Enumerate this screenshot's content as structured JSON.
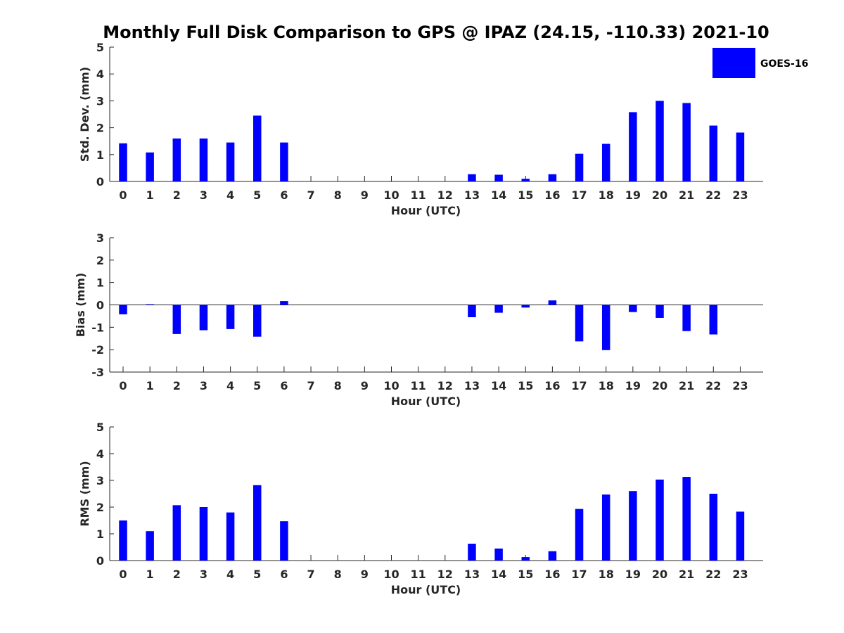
{
  "title": "Monthly Full Disk Comparison to GPS @ IPAZ (24.15, -110.33) 2021-10",
  "legend": {
    "label": "GOES-16",
    "color": "#0000ff",
    "placement": "top-right"
  },
  "chart_data": [
    {
      "type": "bar",
      "name": "std",
      "xlabel": "Hour (UTC)",
      "ylabel": "Std. Dev. (mm)",
      "ylim": [
        0,
        5
      ],
      "yticks": [
        "0",
        "1",
        "2",
        "3",
        "4",
        "5"
      ],
      "categories": [
        "0",
        "1",
        "2",
        "3",
        "4",
        "5",
        "6",
        "7",
        "8",
        "9",
        "10",
        "11",
        "12",
        "13",
        "14",
        "15",
        "16",
        "17",
        "18",
        "19",
        "20",
        "21",
        "22",
        "23"
      ],
      "series": [
        {
          "name": "GOES-16",
          "values": [
            1.42,
            1.08,
            1.6,
            1.6,
            1.45,
            2.45,
            1.45,
            0,
            0,
            0,
            0,
            0,
            0,
            0.27,
            0.25,
            0.1,
            0.27,
            1.03,
            1.4,
            2.58,
            3.0,
            2.92,
            2.08,
            1.82
          ]
        }
      ]
    },
    {
      "type": "bar",
      "name": "bias",
      "xlabel": "Hour (UTC)",
      "ylabel": "Bias (mm)",
      "ylim": [
        -3,
        3
      ],
      "yticks": [
        "-3",
        "-2",
        "-1",
        "0",
        "1",
        "2",
        "3"
      ],
      "categories": [
        "0",
        "1",
        "2",
        "3",
        "4",
        "5",
        "6",
        "7",
        "8",
        "9",
        "10",
        "11",
        "12",
        "13",
        "14",
        "15",
        "16",
        "17",
        "18",
        "19",
        "20",
        "21",
        "22",
        "23"
      ],
      "series": [
        {
          "name": "GOES-16",
          "values": [
            -0.42,
            0.03,
            -1.3,
            -1.13,
            -1.08,
            -1.42,
            0.17,
            0,
            0,
            0,
            0,
            0,
            0,
            -0.55,
            -0.35,
            -0.12,
            0.2,
            -1.63,
            -2.02,
            -0.32,
            -0.58,
            -1.17,
            -1.32,
            0
          ]
        }
      ]
    },
    {
      "type": "bar",
      "name": "rms",
      "xlabel": "Hour (UTC)",
      "ylabel": "RMS (mm)",
      "ylim": [
        0,
        5
      ],
      "yticks": [
        "0",
        "1",
        "2",
        "3",
        "4",
        "5"
      ],
      "categories": [
        "0",
        "1",
        "2",
        "3",
        "4",
        "5",
        "6",
        "7",
        "8",
        "9",
        "10",
        "11",
        "12",
        "13",
        "14",
        "15",
        "16",
        "17",
        "18",
        "19",
        "20",
        "21",
        "22",
        "23"
      ],
      "series": [
        {
          "name": "GOES-16",
          "values": [
            1.5,
            1.1,
            2.07,
            2.0,
            1.8,
            2.82,
            1.47,
            0,
            0,
            0,
            0,
            0,
            0,
            0.63,
            0.45,
            0.13,
            0.35,
            1.93,
            2.47,
            2.6,
            3.03,
            3.13,
            2.5,
            1.83
          ]
        }
      ]
    }
  ]
}
